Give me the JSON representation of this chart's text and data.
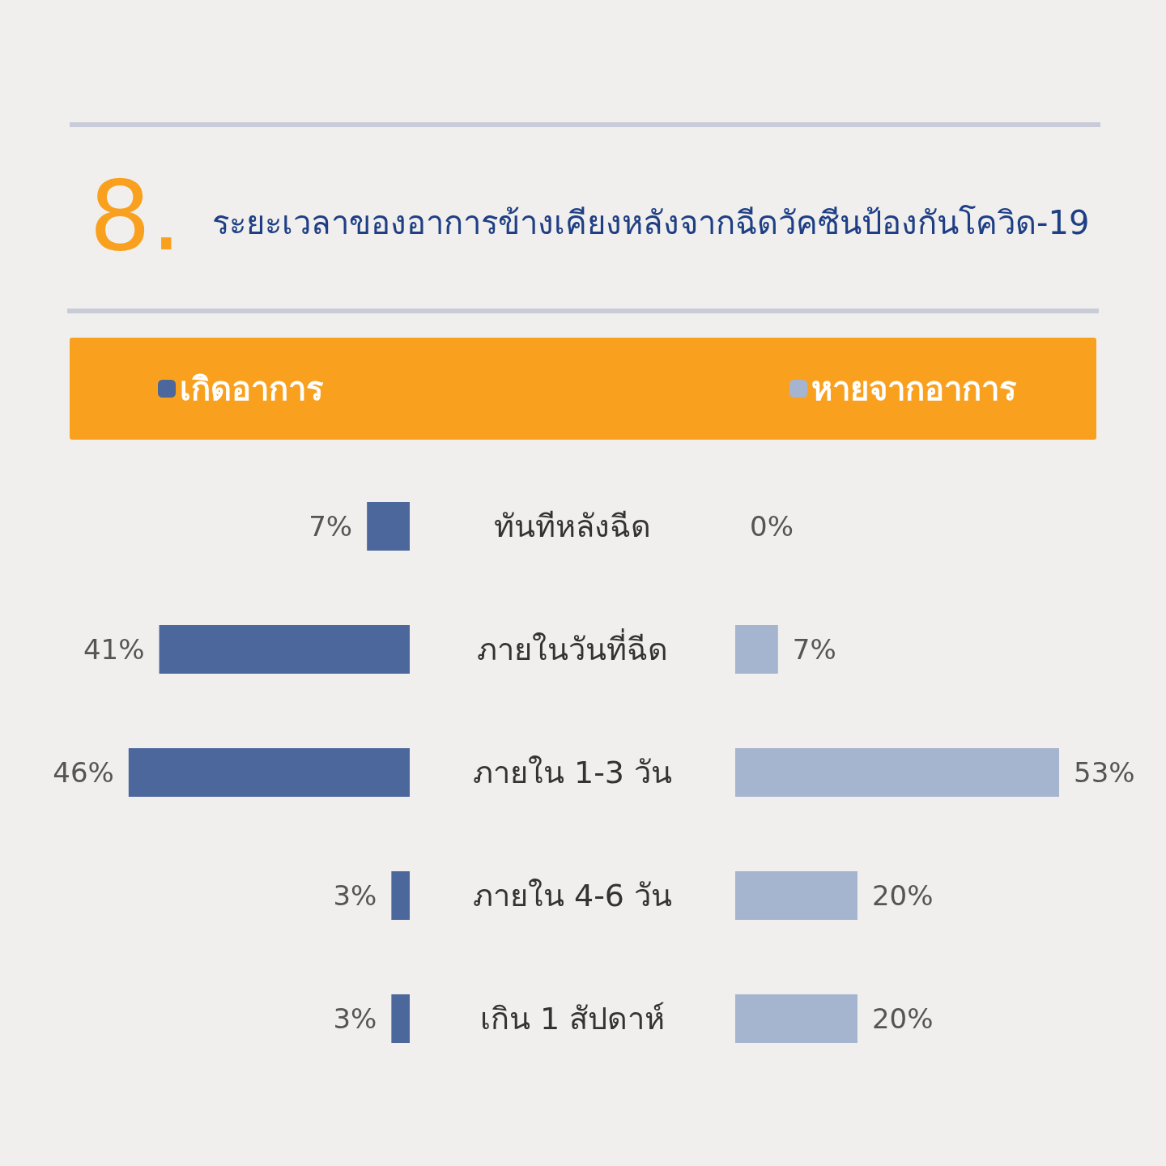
{
  "chart_data": [
    {
      "type": "bar",
      "orientation": "horizontal",
      "title": "ระยะเวลาของอาการข้างเคียงหลังจากฉีดวัคซีนป้องกันโควิด-19",
      "annotations": [
        "8."
      ],
      "categories": [
        "ทันทีหลังฉีด",
        "ภายในวันที่ฉีด",
        "ภายใน 1-3 วัน",
        "ภายใน 4-6 วัน",
        "เกิน 1 สัปดาห์"
      ],
      "series": [
        {
          "name": "เกิดอาการ",
          "color": "#4b679c",
          "values": [
            7,
            41,
            46,
            3,
            3
          ],
          "value_labels": [
            "7%",
            "41%",
            "46%",
            "3%",
            "3%"
          ]
        }
      ],
      "legend": "top",
      "tick_labels": "y"
    },
    {
      "type": "bar",
      "orientation": "horizontal",
      "categories": [
        null,
        null,
        null,
        null,
        null
      ],
      "series": [
        {
          "name": "หายจากอาการ",
          "color": "#a5b4cf",
          "values": [
            0,
            7,
            53,
            20,
            20
          ],
          "value_labels": [
            "0%",
            "7%",
            "53%",
            "20%",
            "20%"
          ]
        }
      ],
      "legend": "top",
      "tick_labels": false
    }
  ]
}
